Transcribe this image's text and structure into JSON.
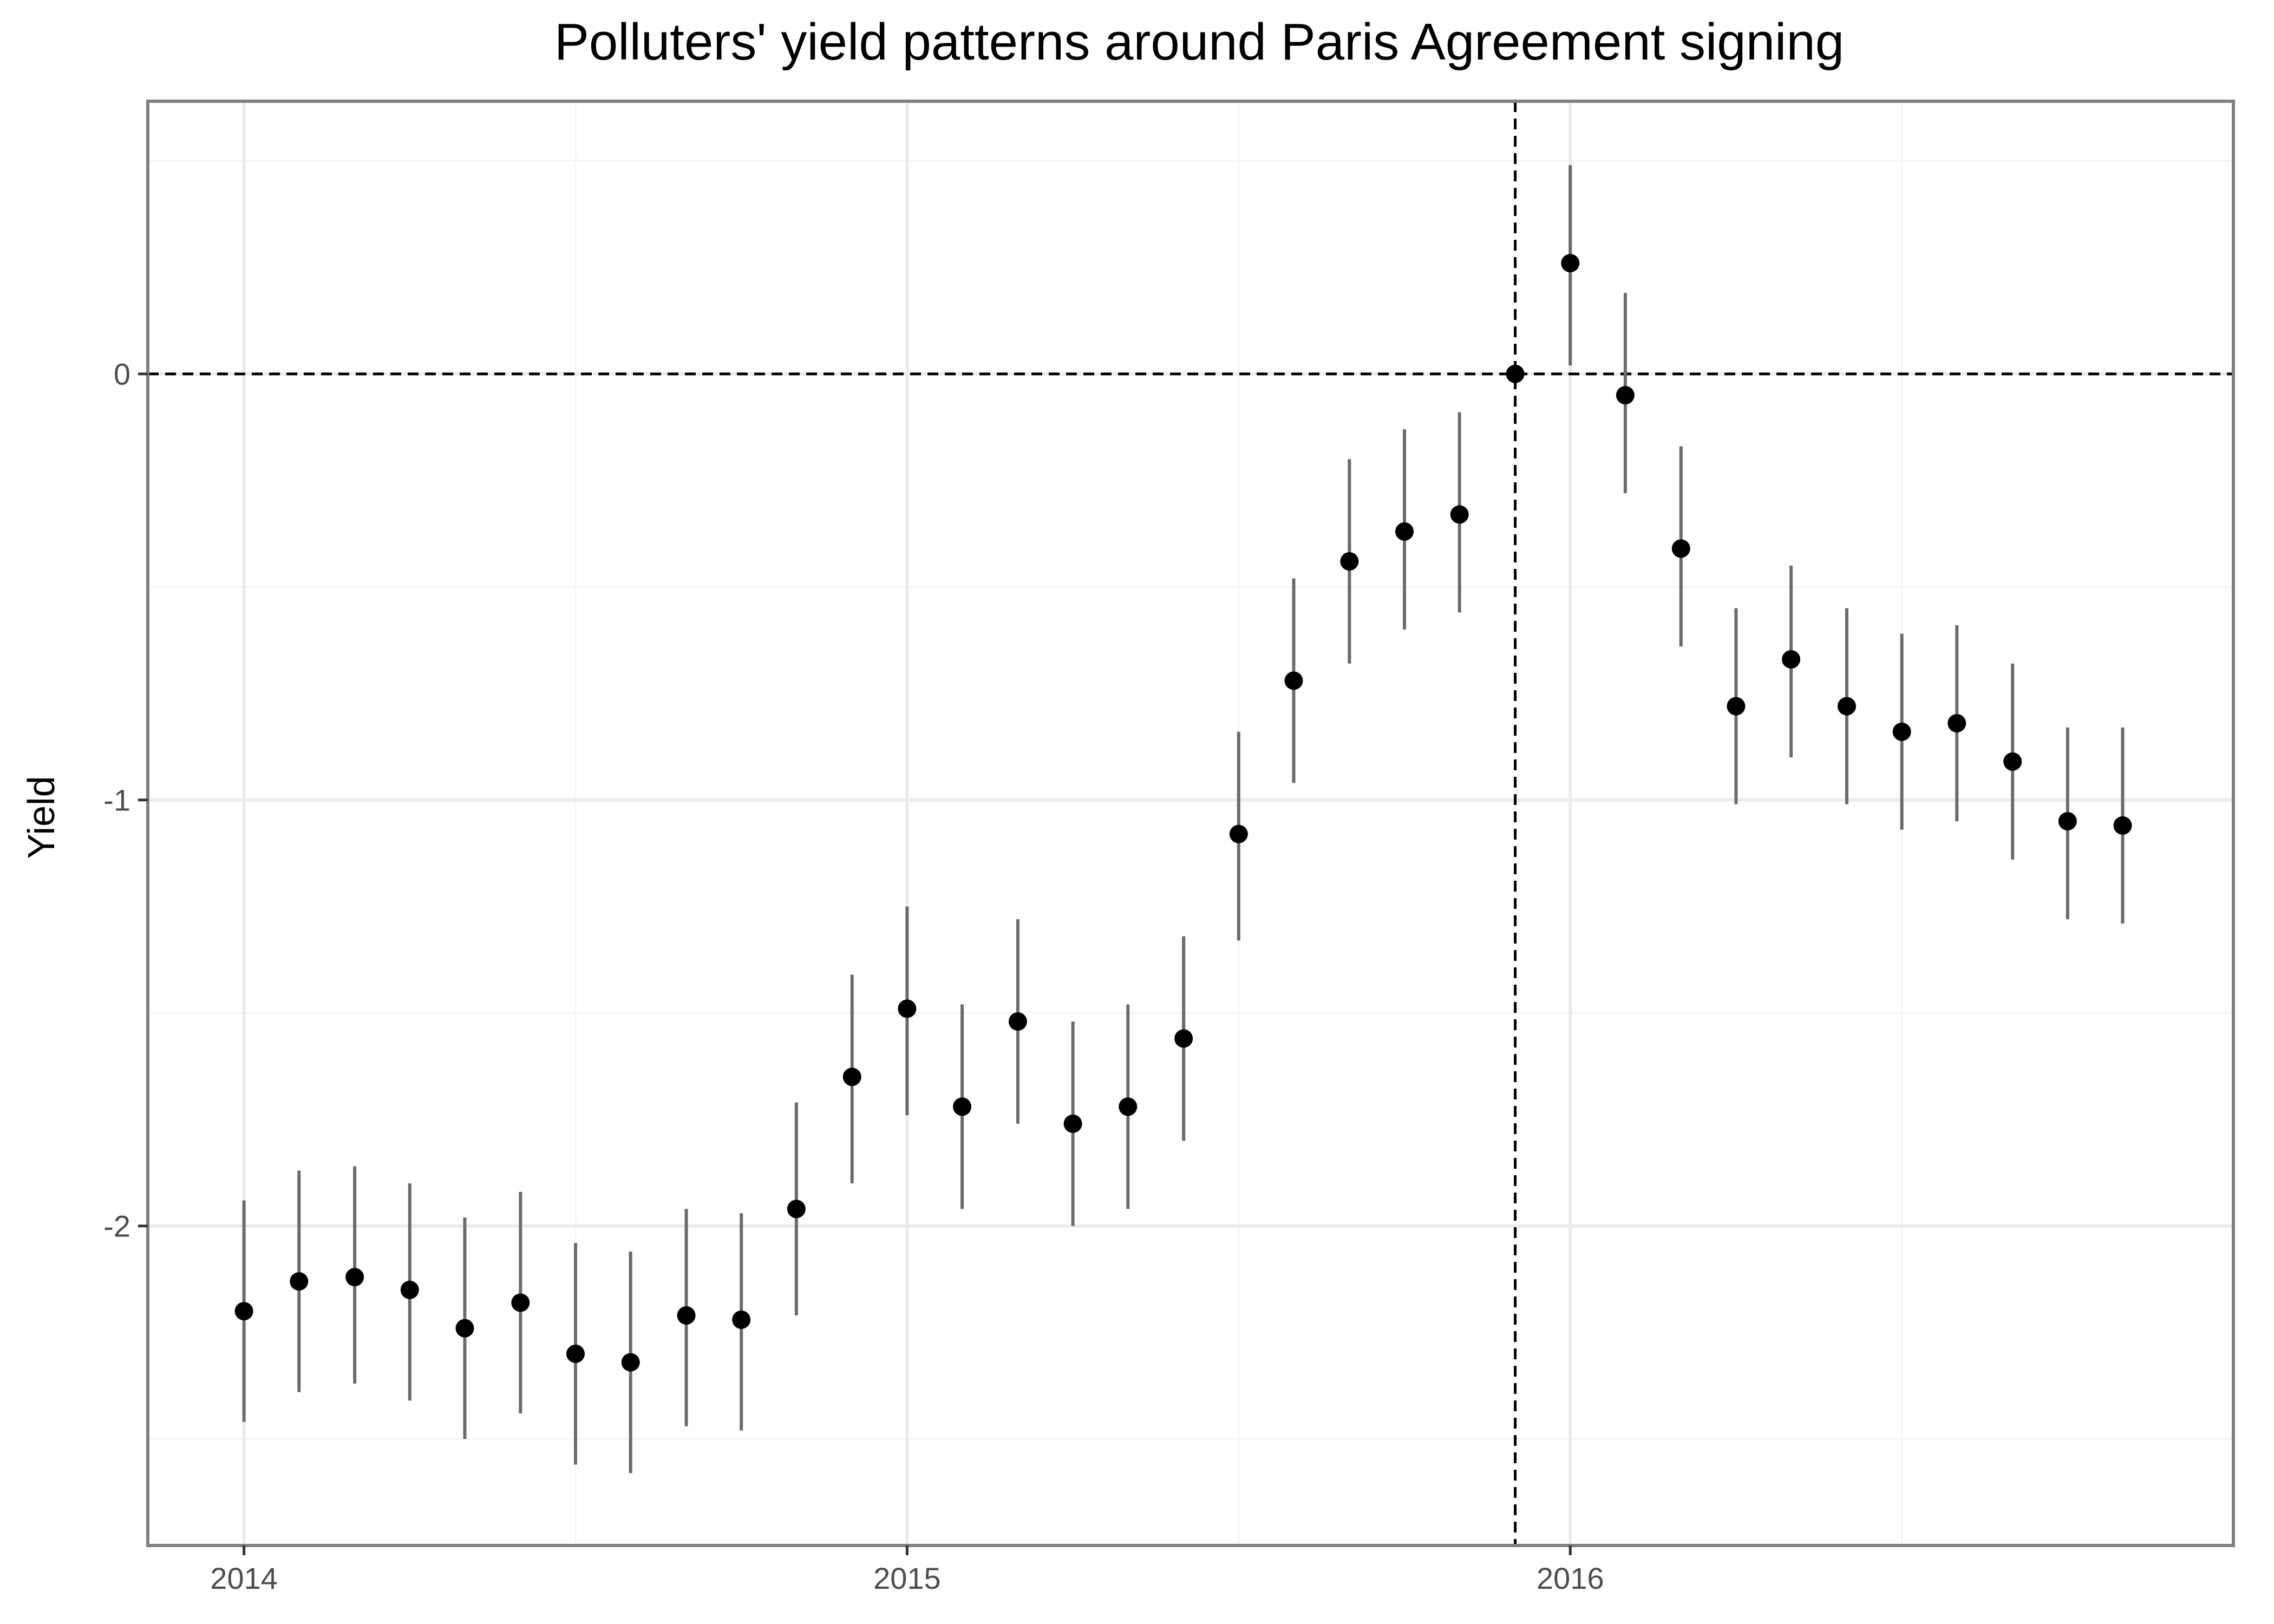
{
  "chart_data": {
    "type": "scatter",
    "title": "Polluters' yield patterns around Paris Agreement signing",
    "xlabel": "",
    "ylabel": "Yield",
    "x_ticks": [
      {
        "value": 2014.0,
        "label": "2014"
      },
      {
        "value": 2015.0,
        "label": "2015"
      },
      {
        "value": 2016.0,
        "label": "2016"
      }
    ],
    "y_ticks": [
      {
        "value": 0,
        "label": "0"
      },
      {
        "value": -1,
        "label": "-1"
      },
      {
        "value": -2,
        "label": "-2"
      }
    ],
    "xlim": [
      2013.855,
      2017.0
    ],
    "ylim": [
      -2.75,
      0.64
    ],
    "grid": true,
    "reference_lines": {
      "vline_x": 2015.917,
      "hline_y": 0
    },
    "colors": {
      "point": "#000000",
      "errorbar": "#6b6b6b",
      "reference": "#000000",
      "grid_major": "#ebebeb",
      "grid_minor": "#f5f5f5",
      "border": "#7f7f7f"
    },
    "series": [
      {
        "x": [
          2014.0,
          2014.083,
          2014.167,
          2014.25,
          2014.333,
          2014.417,
          2014.5,
          2014.583,
          2014.667,
          2014.75,
          2014.833,
          2014.917,
          2015.0,
          2015.083,
          2015.167,
          2015.25,
          2015.333,
          2015.417,
          2015.5,
          2015.583,
          2015.667,
          2015.75,
          2015.833,
          2015.917,
          2016.0,
          2016.083,
          2016.167,
          2016.25,
          2016.333,
          2016.417,
          2016.5,
          2016.583,
          2016.667,
          2016.75,
          2016.833
        ],
        "y": [
          -2.2,
          -2.13,
          -2.12,
          -2.15,
          -2.24,
          -2.18,
          -2.3,
          -2.32,
          -2.21,
          -2.22,
          -1.96,
          -1.65,
          -1.49,
          -1.72,
          -1.52,
          -1.76,
          -1.72,
          -1.56,
          -1.08,
          -0.72,
          -0.44,
          -0.37,
          -0.33,
          0.0,
          0.26,
          -0.05,
          -0.41,
          -0.78,
          -0.67,
          -0.78,
          -0.84,
          -0.82,
          -0.91,
          -1.05,
          -1.06
        ],
        "ymin": [
          -2.46,
          -2.39,
          -2.37,
          -2.41,
          -2.5,
          -2.44,
          -2.56,
          -2.58,
          -2.47,
          -2.48,
          -2.21,
          -1.9,
          -1.74,
          -1.96,
          -1.76,
          -2.0,
          -1.96,
          -1.8,
          -1.33,
          -0.96,
          -0.68,
          -0.6,
          -0.56,
          0.0,
          0.02,
          -0.28,
          -0.64,
          -1.01,
          -0.9,
          -1.01,
          -1.07,
          -1.05,
          -1.14,
          -1.28,
          -1.29
        ],
        "ymax": [
          -1.94,
          -1.87,
          -1.86,
          -1.9,
          -1.98,
          -1.92,
          -2.04,
          -2.06,
          -1.96,
          -1.97,
          -1.71,
          -1.41,
          -1.25,
          -1.48,
          -1.28,
          -1.52,
          -1.48,
          -1.32,
          -0.84,
          -0.48,
          -0.2,
          -0.13,
          -0.09,
          0.0,
          0.49,
          0.19,
          -0.17,
          -0.55,
          -0.45,
          -0.55,
          -0.61,
          -0.59,
          -0.68,
          -0.83,
          -0.83
        ]
      }
    ]
  }
}
